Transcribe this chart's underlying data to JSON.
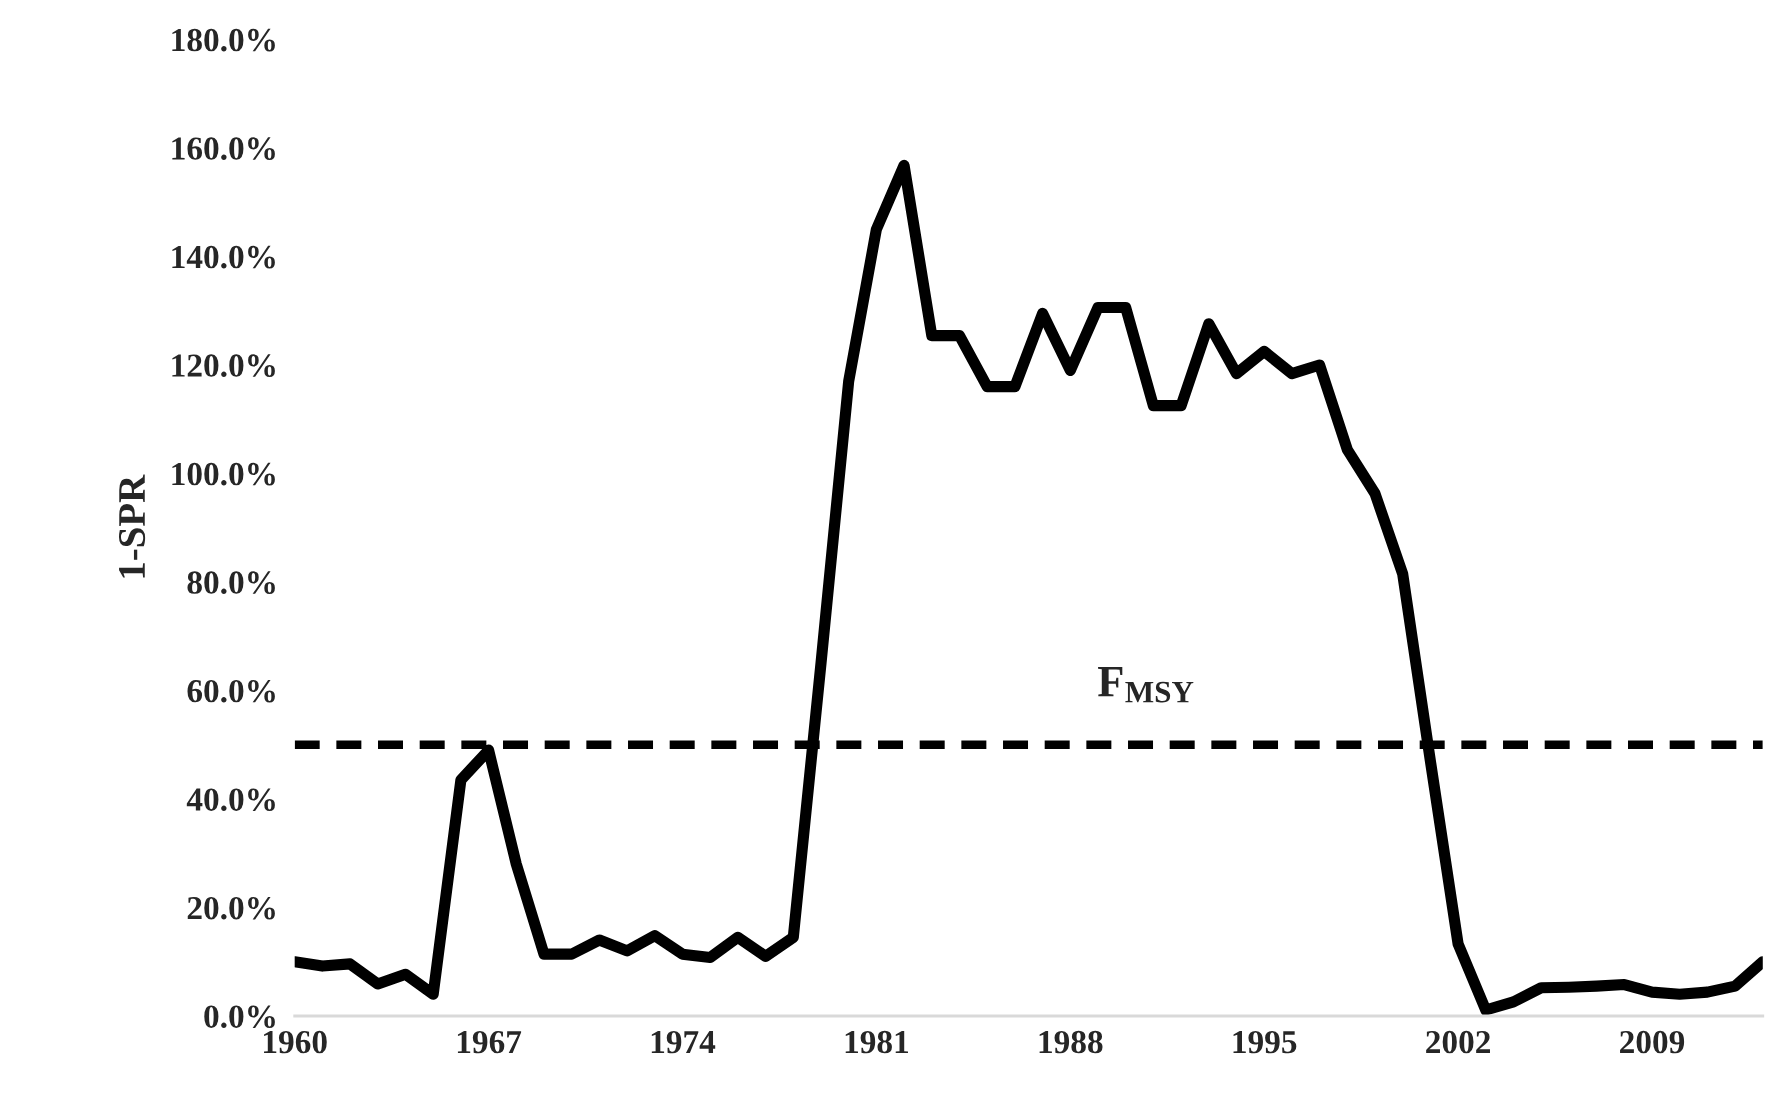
{
  "chart_data": {
    "type": "line",
    "ylabel": "1-SPR",
    "categories": [
      "1960",
      null,
      null,
      null,
      null,
      null,
      null,
      "1967",
      null,
      null,
      null,
      null,
      null,
      null,
      "1974",
      null,
      null,
      null,
      null,
      null,
      null,
      "1981",
      null,
      null,
      null,
      null,
      null,
      null,
      "1988",
      null,
      null,
      null,
      null,
      null,
      null,
      "1995",
      null,
      null,
      null,
      null,
      null,
      null,
      "2002",
      null,
      null,
      null,
      null,
      null,
      null,
      "2009",
      null,
      null,
      null,
      null
    ],
    "series": [
      {
        "color": "#000000",
        "values": [
          10,
          9.2,
          9.6,
          5.9,
          7.7,
          4,
          43.5,
          49,
          28,
          11.4,
          11.4,
          14,
          12,
          14.8,
          11.4,
          10.8,
          14.5,
          11,
          14.5,
          65,
          117,
          145,
          156.8,
          125.4,
          125.4,
          116,
          116,
          129.5,
          119,
          130.6,
          130.6,
          112.5,
          112.5,
          127.6,
          118.4,
          122.5,
          118.4,
          120,
          104.4,
          96.3,
          81.5,
          47,
          13.3,
          1.1,
          2.6,
          5.2,
          5.3,
          5.5,
          5.8,
          4.4,
          4,
          4.4,
          5.5,
          10
        ]
      }
    ],
    "ylim": [
      0,
      180
    ],
    "yticks": [
      {
        "value": 0,
        "label": "0.0%"
      },
      {
        "value": 20,
        "label": "20.0%"
      },
      {
        "value": 40,
        "label": "40.0%"
      },
      {
        "value": 60,
        "label": "60.0%"
      },
      {
        "value": 80,
        "label": "80.0%"
      },
      {
        "value": 100,
        "label": "100.0%"
      },
      {
        "value": 120,
        "label": "120.0%"
      },
      {
        "value": 140,
        "label": "140.0%"
      },
      {
        "value": 160,
        "label": "160.0%"
      },
      {
        "value": 180,
        "label": "180.0%"
      }
    ],
    "ref_lines": [
      {
        "axis": "y",
        "value": 50,
        "label": "F$_{MSY}$",
        "color": "#000000",
        "line_style": "dashed"
      }
    ],
    "grid": false,
    "marker": "none",
    "line_style": "solid"
  }
}
